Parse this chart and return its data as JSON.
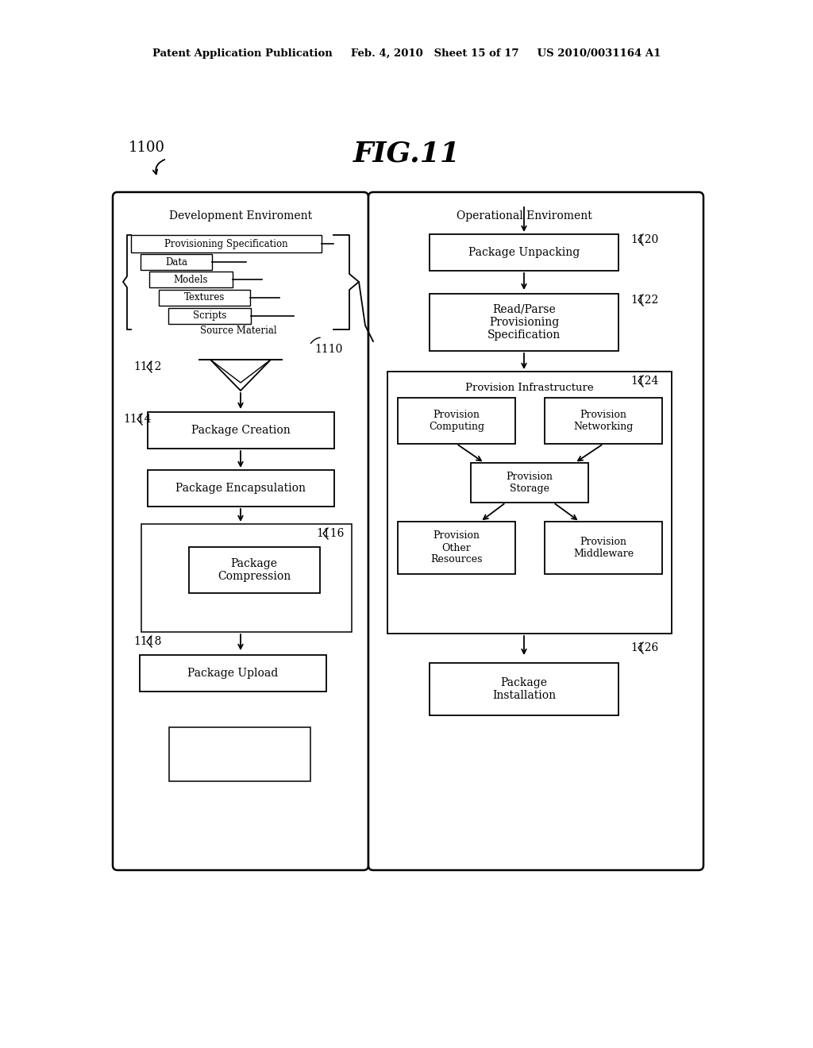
{
  "bg_color": "#ffffff",
  "header": "Patent Application Publication     Feb. 4, 2010   Sheet 15 of 17     US 2010/0031164 A1",
  "fig_title": "FIG.11",
  "ref_1100": "1100",
  "left_title": "Development Enviroment",
  "right_title": "Operational Enviroment",
  "src_prov_spec": "Provisioning Specification",
  "src_data": "Data",
  "src_models": "Models",
  "src_textures": "Textures",
  "src_scripts": "Scripts",
  "src_material": "Source Material",
  "ref_1110": "1110",
  "ref_1112": "1112",
  "ref_1114": "1114",
  "ref_1116": "1116",
  "ref_1118": "1118",
  "ref_1120": "1120",
  "ref_1122": "1122",
  "ref_1124": "1124",
  "ref_1126": "1126",
  "lbl_pkg_creation": "Package Creation",
  "lbl_pkg_encap": "Package Encapsulation",
  "lbl_pkg_compress": "Package\nCompression",
  "lbl_pkg_upload": "Package Upload",
  "lbl_pkg_unpack": "Package Unpacking",
  "lbl_read_parse": "Read/Parse\nProvisioning\nSpecification",
  "lbl_prov_infra": "Provision Infrastructure",
  "lbl_prov_comp": "Provision\nComputing",
  "lbl_prov_net": "Provision\nNetworking",
  "lbl_prov_stor": "Provision\nStorage",
  "lbl_prov_other": "Provision\nOther\nResources",
  "lbl_prov_mid": "Provision\nMiddleware",
  "lbl_pkg_install": "Package\nInstallation"
}
